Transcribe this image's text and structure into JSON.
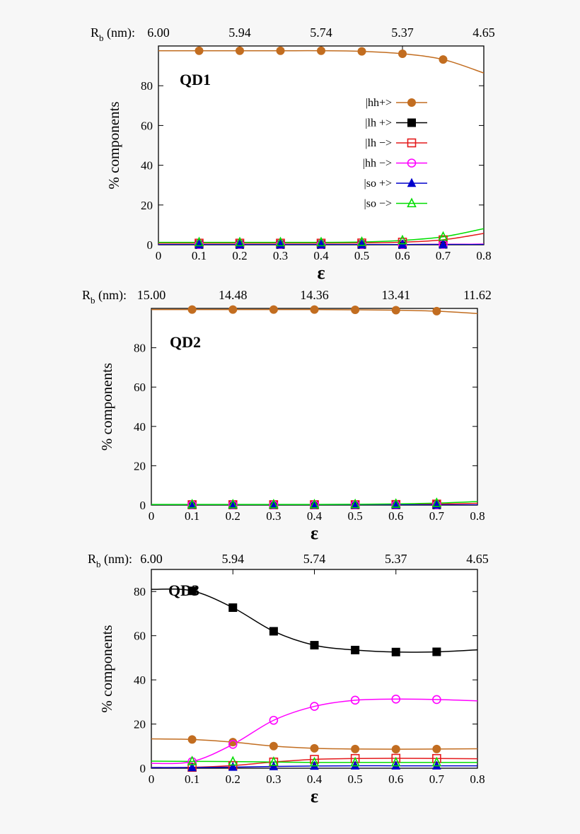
{
  "colors": {
    "hh_plus": "#c26d20",
    "lh_plus": "#000000",
    "lh_minus": "#e41a1c",
    "hh_minus": "#ff00ff",
    "so_plus": "#0000cc",
    "so_minus": "#00dd00",
    "background": "#f7f7f7"
  },
  "chart_data": [
    {
      "type": "line",
      "panel_label": "QD1",
      "xlabel": "ε",
      "ylabel": "% components",
      "top_axis_label": "R",
      "top_axis_label_sub": "b",
      "top_axis_label_unit": " (nm):",
      "xlim": [
        0,
        0.8
      ],
      "ylim": [
        0,
        100
      ],
      "x_ticks": [
        "0",
        "0.1",
        "0.2",
        "0.3",
        "0.4",
        "0.5",
        "0.6",
        "0.7",
        "0.8"
      ],
      "y_ticks": [
        "0",
        "20",
        "40",
        "60",
        "80"
      ],
      "top_ticks": [
        "6.00",
        "5.94",
        "5.74",
        "5.37",
        "4.65"
      ],
      "legend": [
        "|hh+>",
        "|lh +>",
        "|lh −>",
        "|hh −>",
        "|so +>",
        "|so −>"
      ],
      "legend_position": "top-right",
      "x": [
        0,
        0.1,
        0.2,
        0.3,
        0.4,
        0.5,
        0.6,
        0.7,
        0.8
      ],
      "series": [
        {
          "name": "|hh+>",
          "marker": "filled-circle",
          "color": "#c26d20",
          "values": [
            97.6,
            97.6,
            97.6,
            97.6,
            97.6,
            97.3,
            96.1,
            93.2,
            86.4
          ]
        },
        {
          "name": "|lh +>",
          "marker": "filled-square",
          "color": "#000000",
          "values": [
            0.1,
            0.1,
            0.1,
            0.1,
            0.1,
            0.1,
            0.1,
            0.2,
            0.3
          ]
        },
        {
          "name": "|lh −>",
          "marker": "open-square",
          "color": "#e41a1c",
          "values": [
            0.8,
            0.8,
            0.8,
            0.8,
            0.8,
            0.9,
            1.3,
            2.5,
            5.7
          ]
        },
        {
          "name": "|hh −>",
          "marker": "open-circle",
          "color": "#ff00ff",
          "values": [
            0.1,
            0.1,
            0.1,
            0.1,
            0.1,
            0.1,
            0.1,
            0.2,
            0.3
          ]
        },
        {
          "name": "|so +>",
          "marker": "filled-triangle",
          "color": "#0000cc",
          "values": [
            0.1,
            0.1,
            0.1,
            0.1,
            0.1,
            0.1,
            0.1,
            0.1,
            0.1
          ]
        },
        {
          "name": "|so −>",
          "marker": "open-triangle",
          "color": "#00dd00",
          "values": [
            1.2,
            1.2,
            1.2,
            1.2,
            1.2,
            1.4,
            2.2,
            4.0,
            8.1
          ]
        }
      ]
    },
    {
      "type": "line",
      "panel_label": "QD2",
      "xlabel": "ε",
      "ylabel": "% components",
      "top_axis_label": "R",
      "top_axis_label_sub": "b",
      "top_axis_label_unit": " (nm):",
      "xlim": [
        0,
        0.8
      ],
      "ylim": [
        0,
        100
      ],
      "x_ticks": [
        "0",
        "0.1",
        "0.2",
        "0.3",
        "0.4",
        "0.5",
        "0.6",
        "0.7",
        "0.8"
      ],
      "y_ticks": [
        "0",
        "20",
        "40",
        "60",
        "80"
      ],
      "top_ticks": [
        "15.00",
        "14.48",
        "14.36",
        "13.41",
        "11.62"
      ],
      "x": [
        0,
        0.1,
        0.2,
        0.3,
        0.4,
        0.5,
        0.6,
        0.7,
        0.8
      ],
      "series": [
        {
          "name": "|hh+>",
          "marker": "filled-circle",
          "color": "#c26d20",
          "values": [
            99.4,
            99.4,
            99.4,
            99.4,
            99.4,
            99.3,
            99.1,
            98.6,
            97.4
          ]
        },
        {
          "name": "|lh +>",
          "marker": "filled-square",
          "color": "#000000",
          "values": [
            0.1,
            0.1,
            0.1,
            0.1,
            0.1,
            0.1,
            0.1,
            0.1,
            0.1
          ]
        },
        {
          "name": "|lh −>",
          "marker": "open-square",
          "color": "#e41a1c",
          "values": [
            0.2,
            0.2,
            0.2,
            0.2,
            0.2,
            0.2,
            0.3,
            0.5,
            0.9
          ]
        },
        {
          "name": "|hh −>",
          "marker": "open-circle",
          "color": "#ff00ff",
          "values": [
            0.1,
            0.1,
            0.1,
            0.1,
            0.1,
            0.1,
            0.1,
            0.1,
            0.1
          ]
        },
        {
          "name": "|so +>",
          "marker": "filled-triangle",
          "color": "#0000cc",
          "values": [
            0.1,
            0.1,
            0.1,
            0.1,
            0.1,
            0.1,
            0.1,
            0.1,
            0.1
          ]
        },
        {
          "name": "|so −>",
          "marker": "open-triangle",
          "color": "#00dd00",
          "values": [
            0.3,
            0.3,
            0.3,
            0.3,
            0.3,
            0.4,
            0.6,
            1.0,
            1.8
          ]
        }
      ]
    },
    {
      "type": "line",
      "panel_label": "QD3",
      "xlabel": "ε",
      "ylabel": "% components",
      "top_axis_label": "R",
      "top_axis_label_sub": "b",
      "top_axis_label_unit": " (nm):",
      "xlim": [
        0,
        0.8
      ],
      "ylim": [
        0,
        90
      ],
      "x_ticks": [
        "0",
        "0.1",
        "0.2",
        "0.3",
        "0.4",
        "0.5",
        "0.6",
        "0.7",
        "0.8"
      ],
      "y_ticks": [
        "0",
        "20",
        "40",
        "60",
        "80"
      ],
      "top_ticks": [
        "6.00",
        "5.94",
        "5.74",
        "5.37",
        "4.65"
      ],
      "x": [
        0,
        0.1,
        0.2,
        0.3,
        0.4,
        0.5,
        0.6,
        0.7,
        0.8
      ],
      "series": [
        {
          "name": "|hh+>",
          "marker": "filled-circle",
          "color": "#c26d20",
          "values": [
            13.3,
            13.0,
            11.8,
            10.0,
            9.0,
            8.7,
            8.6,
            8.7,
            8.8
          ]
        },
        {
          "name": "|lh +>",
          "marker": "filled-square",
          "color": "#000000",
          "values": [
            81.0,
            80.3,
            72.7,
            62.0,
            55.7,
            53.5,
            52.6,
            52.7,
            53.6
          ]
        },
        {
          "name": "|lh −>",
          "marker": "open-square",
          "color": "#e41a1c",
          "values": [
            0.3,
            0.4,
            1.2,
            2.8,
            4.0,
            4.4,
            4.5,
            4.4,
            4.3
          ]
        },
        {
          "name": "|hh −>",
          "marker": "open-circle",
          "color": "#ff00ff",
          "values": [
            2.2,
            3.0,
            10.8,
            21.7,
            28.0,
            30.8,
            31.3,
            31.1,
            30.5
          ]
        },
        {
          "name": "|so +>",
          "marker": "filled-triangle",
          "color": "#0000cc",
          "values": [
            0.3,
            0.3,
            0.5,
            0.8,
            1.0,
            1.1,
            1.1,
            1.1,
            1.1
          ]
        },
        {
          "name": "|so −>",
          "marker": "open-triangle",
          "color": "#00dd00",
          "values": [
            3.2,
            3.1,
            3.0,
            2.8,
            2.6,
            2.6,
            2.6,
            2.6,
            2.6
          ]
        }
      ]
    }
  ]
}
